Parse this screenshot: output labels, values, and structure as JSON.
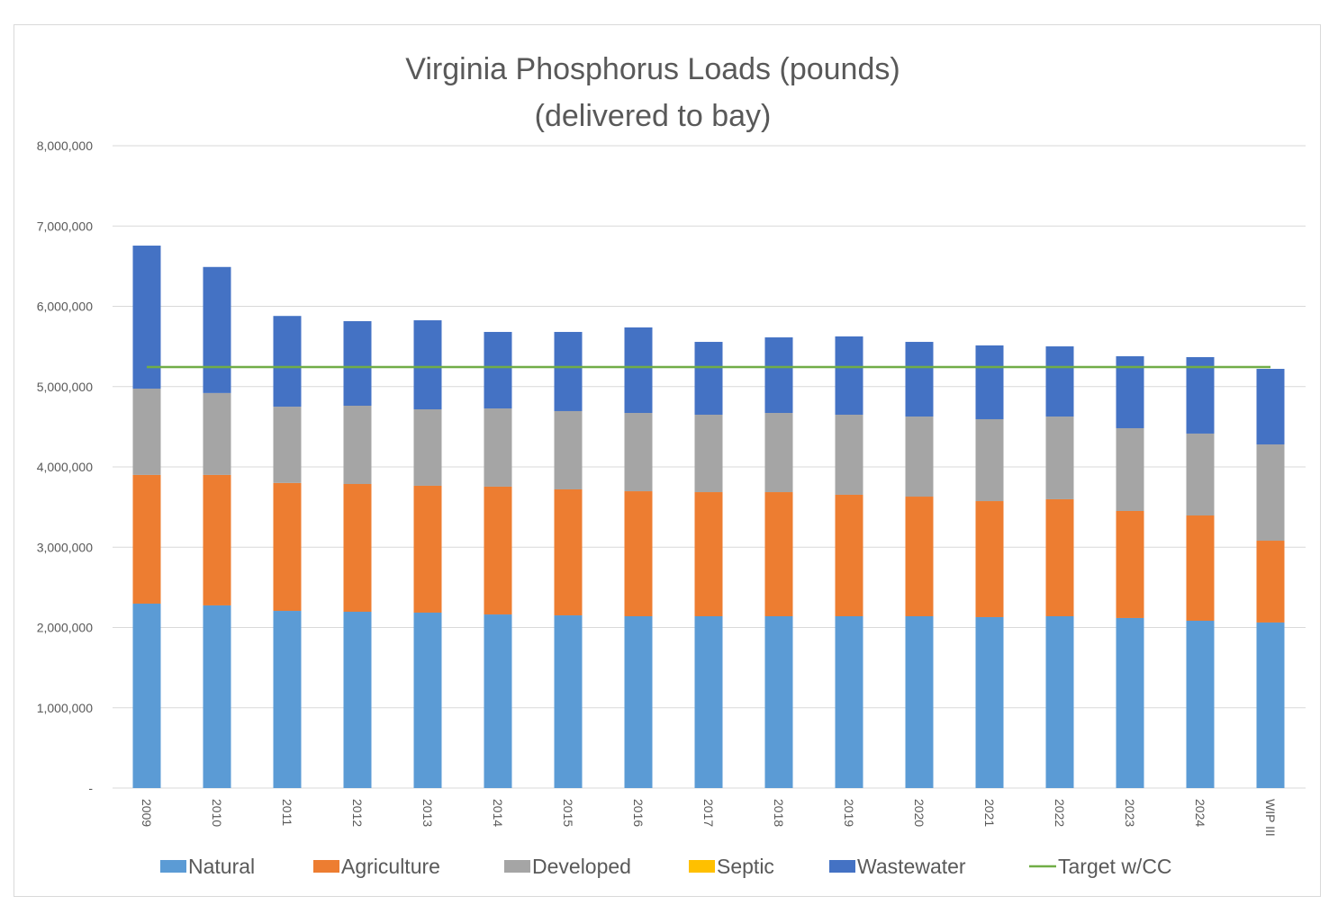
{
  "chart_data": {
    "type": "bar",
    "stacked": true,
    "title": [
      "Virginia Phosphorus Loads (pounds)",
      "(delivered to bay)"
    ],
    "xlabel": "",
    "ylabel": "",
    "ylim": [
      0,
      8000000
    ],
    "yticks": [
      0,
      1000000,
      2000000,
      3000000,
      4000000,
      5000000,
      6000000,
      7000000,
      8000000
    ],
    "ytick_labels": [
      "-",
      "1,000,000",
      "2,000,000",
      "3,000,000",
      "4,000,000",
      "5,000,000",
      "6,000,000",
      "7,000,000",
      "8,000,000"
    ],
    "grid": true,
    "legend_position": "bottom",
    "categories": [
      "2009",
      "2010",
      "2011",
      "2012",
      "2013",
      "2014",
      "2015",
      "2016",
      "2017",
      "2018",
      "2019",
      "2020",
      "2021",
      "2022",
      "2023",
      "2024",
      "WIP III"
    ],
    "series": [
      {
        "name": "Natural",
        "color": "#5b9bd5",
        "values": [
          2297000,
          2275000,
          2207000,
          2196000,
          2185000,
          2162000,
          2151000,
          2140000,
          2140000,
          2140000,
          2140000,
          2140000,
          2129000,
          2140000,
          2118000,
          2084000,
          2062000
        ]
      },
      {
        "name": "Agriculture",
        "color": "#ed7d31",
        "values": [
          1603000,
          1625000,
          1593000,
          1591000,
          1580000,
          1592000,
          1569000,
          1557000,
          1546000,
          1546000,
          1513000,
          1490000,
          1445000,
          1457000,
          1333000,
          1311000,
          1019000
        ]
      },
      {
        "name": "Developed",
        "color": "#a5a5a5",
        "values": [
          1075000,
          1020000,
          950000,
          975000,
          952000,
          974000,
          975000,
          975000,
          964000,
          986000,
          997000,
          997000,
          1020000,
          1030000,
          1031000,
          1020000,
          1199000
        ]
      },
      {
        "name": "Septic",
        "color": "#ffc000",
        "values": [
          0,
          0,
          0,
          0,
          0,
          0,
          0,
          0,
          0,
          0,
          0,
          0,
          0,
          0,
          0,
          0,
          0
        ]
      },
      {
        "name": "Wastewater",
        "color": "#4472c4",
        "values": [
          1781000,
          1570000,
          1130000,
          1053000,
          1109000,
          953000,
          986000,
          1065000,
          907000,
          941000,
          975000,
          930000,
          919000,
          874000,
          896000,
          952000,
          941000
        ]
      }
    ],
    "lines": [
      {
        "name": "Target w/CC",
        "color": "#70ad47",
        "value": 5244000
      }
    ]
  }
}
